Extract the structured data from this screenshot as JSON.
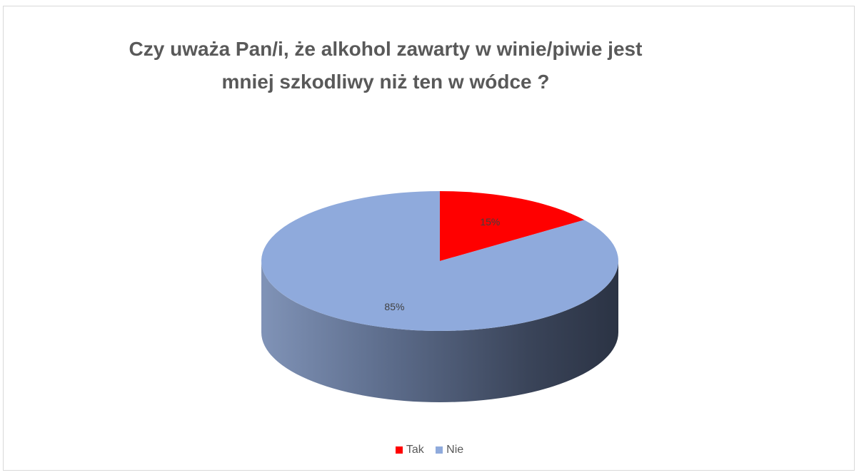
{
  "chart_data": {
    "type": "pie",
    "title_lines": [
      "Czy uważa Pan/i, że alkohol zawarty w winie/piwie jest",
      "mniej szkodliwy niż ten w wódce ?"
    ],
    "style": "3d",
    "slices": [
      {
        "label": "Tak",
        "value": 15,
        "data_label": "15%",
        "color": "#ff0000"
      },
      {
        "label": "Nie",
        "value": 85,
        "data_label": "85%",
        "color": "#8faadc"
      }
    ],
    "legend": [
      "Tak",
      "Nie"
    ],
    "legend_position": "bottom"
  }
}
